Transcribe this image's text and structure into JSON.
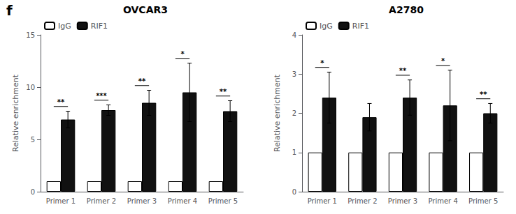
{
  "title": "f",
  "chart_data": [
    {
      "type": "bar",
      "title": "OVCAR3",
      "ylabel": "Relative enrichment",
      "categories": [
        "Primer 1",
        "Primer 2",
        "Primer 3",
        "Primer 4",
        "Primer 5"
      ],
      "series": [
        {
          "name": "IgG",
          "color": "#ffffff",
          "values": [
            1.0,
            1.0,
            1.0,
            1.0,
            1.0
          ]
        },
        {
          "name": "RIF1",
          "color": "#111111",
          "values": [
            6.9,
            7.8,
            8.5,
            9.5,
            7.7
          ],
          "errors": [
            0.8,
            0.5,
            1.2,
            2.8,
            1.0
          ]
        }
      ],
      "annotations": [
        {
          "category": "Primer 1",
          "series": "RIF1",
          "text": "**"
        },
        {
          "category": "Primer 2",
          "series": "RIF1",
          "text": "***"
        },
        {
          "category": "Primer 3",
          "series": "RIF1",
          "text": "**"
        },
        {
          "category": "Primer 4",
          "series": "RIF1",
          "text": "*"
        },
        {
          "category": "Primer 5",
          "series": "RIF1",
          "text": "**"
        }
      ],
      "ylim": [
        0,
        15
      ],
      "yticks": [
        0,
        5,
        10,
        15
      ],
      "grid": false,
      "legend": "upper left"
    },
    {
      "type": "bar",
      "title": "A2780",
      "ylabel": "Relative enrichment",
      "categories": [
        "Primer 1",
        "Primer 2",
        "Primer 3",
        "Primer 4",
        "Primer 5"
      ],
      "series": [
        {
          "name": "IgG",
          "color": "#ffffff",
          "values": [
            1.0,
            1.0,
            1.0,
            1.0,
            1.0
          ]
        },
        {
          "name": "RIF1",
          "color": "#111111",
          "values": [
            2.4,
            1.9,
            2.4,
            2.2,
            2.0
          ],
          "errors": [
            0.65,
            0.35,
            0.45,
            0.9,
            0.25
          ]
        }
      ],
      "annotations": [
        {
          "category": "Primer 1",
          "series": "RIF1",
          "text": "*"
        },
        {
          "category": "Primer 3",
          "series": "RIF1",
          "text": "**"
        },
        {
          "category": "Primer 4",
          "series": "RIF1",
          "text": "*"
        },
        {
          "category": "Primer 5",
          "series": "RIF1",
          "text": "**"
        }
      ],
      "ylim": [
        0,
        4
      ],
      "yticks": [
        0,
        1,
        2,
        3,
        4
      ],
      "grid": false,
      "legend": "upper left"
    }
  ]
}
